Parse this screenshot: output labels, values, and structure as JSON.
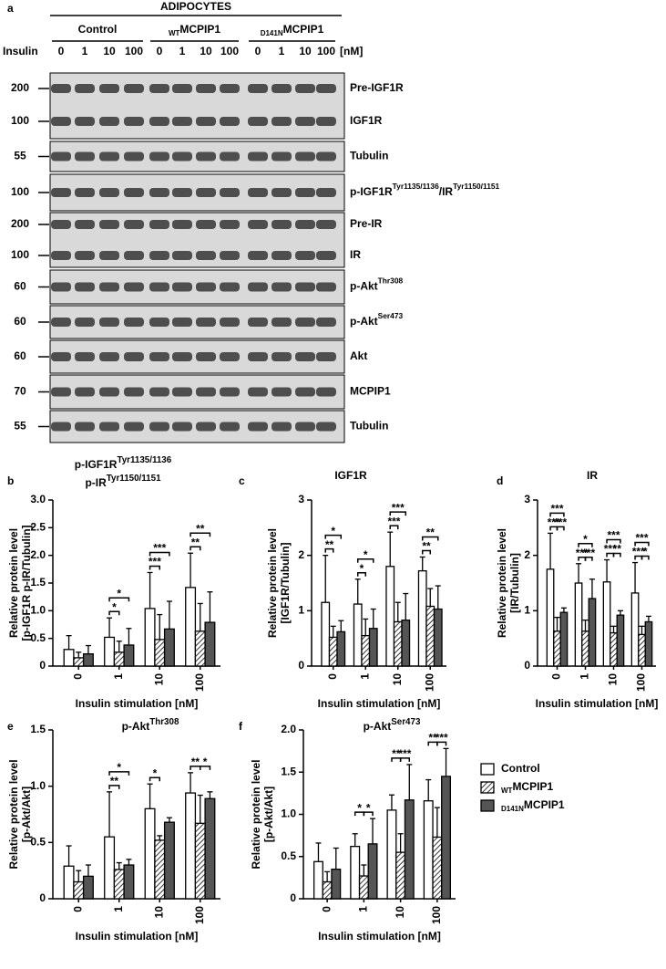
{
  "blot": {
    "panel": "a",
    "cell": "ADIPOCYTES",
    "groups": [
      {
        "name": "Control"
      },
      {
        "sub": "WT",
        "name": "MCPIP1"
      },
      {
        "sub": "D141N",
        "name": "MCPIP1"
      }
    ],
    "treatment": "Insulin",
    "doses": [
      "0",
      "1",
      "10",
      "100"
    ],
    "unit": "[nM]",
    "boxes": [
      {
        "rows": [
          {
            "marker": "200",
            "name": [
              "Pre-IGF1R"
            ]
          },
          {
            "marker": "100",
            "name": [
              "IGF1R"
            ]
          }
        ]
      },
      {
        "rows": [
          {
            "marker": "55",
            "name": [
              "Tubulin"
            ]
          }
        ]
      },
      {
        "rows": [
          {
            "marker": "100",
            "name": [
              "p-IGF1R",
              "Tyr1135/1136",
              "/IR",
              "Tyr1150/1151"
            ]
          }
        ]
      },
      {
        "rows": [
          {
            "marker": "200",
            "name": [
              "Pre-IR"
            ]
          },
          {
            "marker": "100",
            "name": [
              "IR"
            ]
          }
        ]
      },
      {
        "rows": [
          {
            "marker": "60",
            "name": [
              "p-Akt",
              "Thr308"
            ]
          }
        ]
      },
      {
        "rows": [
          {
            "marker": "60",
            "name": [
              "p-Akt",
              "Ser473"
            ]
          }
        ]
      },
      {
        "rows": [
          {
            "marker": "60",
            "name": [
              "Akt"
            ]
          }
        ]
      },
      {
        "rows": [
          {
            "marker": "70",
            "name": [
              "MCPIP1"
            ]
          }
        ]
      },
      {
        "rows": [
          {
            "marker": "55",
            "name": [
              "Tubulin"
            ]
          }
        ]
      }
    ]
  },
  "legend": {
    "series": [
      {
        "name": "Control",
        "color": "#ffffff"
      },
      {
        "sub": "WT",
        "name": "MCPIP1",
        "color": "#9a9a9a",
        "hatch": true
      },
      {
        "sub": "D141N",
        "name": "MCPIP1",
        "color": "#555555"
      }
    ]
  },
  "chart_data": [
    {
      "type": "bar",
      "panel": "b",
      "title": [
        [
          "p-IGF1R",
          "Tyr1135/1136"
        ],
        [
          "p-IR",
          "Tyr1150/1151"
        ]
      ],
      "ylabel": [
        "Relative protein level",
        "[p-IGF1R p-IR/Tubulin]"
      ],
      "xlabel": "Insulin stimulation [nM]",
      "categories": [
        "0",
        "1",
        "10",
        "100"
      ],
      "ylim": [
        0,
        3
      ],
      "yticks": [
        0,
        0.5,
        {
          "value": 1,
          "label": "1.0"
        },
        1.5,
        {
          "value": 2,
          "label": "2.0"
        },
        2.5,
        {
          "value": 3,
          "label": "3.0"
        }
      ],
      "series": [
        {
          "values": [
            0.3,
            0.52,
            1.04,
            1.42
          ],
          "errors": [
            0.25,
            0.35,
            0.65,
            0.62
          ]
        },
        {
          "values": [
            0.15,
            0.25,
            0.48,
            0.63
          ],
          "errors": [
            0.1,
            0.2,
            0.45,
            0.5
          ]
        },
        {
          "values": [
            0.22,
            0.38,
            0.67,
            0.79
          ],
          "errors": [
            0.15,
            0.3,
            0.5,
            0.55
          ]
        }
      ],
      "annotations": [
        {
          "text": "*",
          "category": 1,
          "bars": [
            0,
            1
          ]
        },
        {
          "text": "*",
          "category": 1,
          "bars": [
            0,
            2
          ]
        },
        {
          "text": "***",
          "category": 2,
          "bars": [
            0,
            1
          ]
        },
        {
          "text": "***",
          "category": 2,
          "bars": [
            0,
            2
          ]
        },
        {
          "text": "**",
          "category": 3,
          "bars": [
            0,
            1
          ]
        },
        {
          "text": "**",
          "category": 3,
          "bars": [
            0,
            2
          ]
        }
      ]
    },
    {
      "type": "bar",
      "panel": "c",
      "title": [
        [
          "IGF1R"
        ]
      ],
      "ylabel": [
        "Relative protein level",
        "[IGF1R/Tubulin]"
      ],
      "xlabel": "Insulin stimulation [nM]",
      "categories": [
        "0",
        "1",
        "10",
        "100"
      ],
      "ylim": [
        0,
        3
      ],
      "yticks": [
        0,
        1,
        2,
        3
      ],
      "series": [
        {
          "values": [
            1.15,
            1.12,
            1.8,
            1.72
          ],
          "errors": [
            0.85,
            0.45,
            0.62,
            0.25
          ]
        },
        {
          "values": [
            0.52,
            0.55,
            0.8,
            1.08
          ],
          "errors": [
            0.2,
            0.3,
            0.35,
            0.32
          ]
        },
        {
          "values": [
            0.62,
            0.68,
            0.83,
            1.03
          ],
          "errors": [
            0.2,
            0.35,
            0.48,
            0.42
          ]
        }
      ],
      "annotations": [
        {
          "text": "**",
          "category": 0,
          "bars": [
            0,
            1
          ]
        },
        {
          "text": "*",
          "category": 0,
          "bars": [
            0,
            2
          ]
        },
        {
          "text": "*",
          "category": 1,
          "bars": [
            0,
            1
          ]
        },
        {
          "text": "*",
          "category": 1,
          "bars": [
            0,
            2
          ]
        },
        {
          "text": "***",
          "category": 2,
          "bars": [
            0,
            1
          ]
        },
        {
          "text": "***",
          "category": 2,
          "bars": [
            0,
            2
          ]
        },
        {
          "text": "**",
          "category": 3,
          "bars": [
            0,
            1
          ]
        },
        {
          "text": "**",
          "category": 3,
          "bars": [
            0,
            2
          ]
        }
      ]
    },
    {
      "type": "bar",
      "panel": "d",
      "title": [
        [
          "IR"
        ]
      ],
      "ylabel": [
        "Relative protein level",
        "[IR/Tubulin]"
      ],
      "xlabel": "Insulin stimulation [nM]",
      "categories": [
        "0",
        "1",
        "10",
        "100"
      ],
      "ylim": [
        0,
        3
      ],
      "yticks": [
        0,
        1,
        2,
        3
      ],
      "series": [
        {
          "values": [
            1.75,
            1.5,
            1.52,
            1.32
          ],
          "errors": [
            0.65,
            0.35,
            0.4,
            0.55
          ]
        },
        {
          "values": [
            0.63,
            0.63,
            0.6,
            0.57
          ],
          "errors": [
            0.25,
            0.2,
            0.12,
            0.15
          ]
        },
        {
          "values": [
            0.97,
            1.22,
            0.92,
            0.8
          ],
          "errors": [
            0.08,
            0.35,
            0.08,
            0.1
          ]
        }
      ],
      "annotations": [
        {
          "text": "***",
          "category": 0,
          "bars": [
            0,
            1
          ]
        },
        {
          "text": "***",
          "category": 0,
          "bars": [
            1,
            2
          ]
        },
        {
          "text": "***",
          "category": 0,
          "bars": [
            0,
            2
          ]
        },
        {
          "text": "***",
          "category": 1,
          "bars": [
            0,
            1
          ]
        },
        {
          "text": "***",
          "category": 1,
          "bars": [
            1,
            2
          ]
        },
        {
          "text": "*",
          "category": 1,
          "bars": [
            0,
            2
          ]
        },
        {
          "text": "***",
          "category": 2,
          "bars": [
            0,
            1
          ]
        },
        {
          "text": "**",
          "category": 2,
          "bars": [
            1,
            2
          ]
        },
        {
          "text": "***",
          "category": 2,
          "bars": [
            0,
            2
          ]
        },
        {
          "text": "***",
          "category": 3,
          "bars": [
            0,
            1
          ]
        },
        {
          "text": "*",
          "category": 3,
          "bars": [
            1,
            2
          ]
        },
        {
          "text": "***",
          "category": 3,
          "bars": [
            0,
            2
          ]
        }
      ]
    },
    {
      "type": "bar",
      "panel": "e",
      "title": [
        [
          "p-Akt",
          "Thr308"
        ]
      ],
      "ylabel": [
        "Relative protein level",
        "[p-Akt/Akt]"
      ],
      "xlabel": "Insulin stimulation [nM]",
      "categories": [
        "0",
        "1",
        "10",
        "100"
      ],
      "ylim": [
        0,
        1.5
      ],
      "yticks": [
        0,
        0.5,
        {
          "value": 1,
          "label": "1.0"
        },
        1.5
      ],
      "series": [
        {
          "values": [
            0.29,
            0.55,
            0.8,
            0.94
          ],
          "errors": [
            0.18,
            0.4,
            0.22,
            0.18
          ]
        },
        {
          "values": [
            0.15,
            0.26,
            0.52,
            0.67
          ],
          "errors": [
            0.1,
            0.06,
            0.04,
            0.25
          ]
        },
        {
          "values": [
            0.2,
            0.3,
            0.68,
            0.89
          ],
          "errors": [
            0.1,
            0.05,
            0.04,
            0.06
          ]
        }
      ],
      "annotations": [
        {
          "text": "**",
          "category": 1,
          "bars": [
            0,
            1
          ]
        },
        {
          "text": "*",
          "category": 1,
          "bars": [
            0,
            2
          ]
        },
        {
          "text": "*",
          "category": 2,
          "bars": [
            0,
            1
          ]
        },
        {
          "text": "**",
          "category": 3,
          "bars": [
            0,
            1
          ]
        },
        {
          "text": "*",
          "category": 3,
          "bars": [
            1,
            2
          ]
        }
      ]
    },
    {
      "type": "bar",
      "panel": "f",
      "title": [
        [
          "p-Akt",
          "Ser473"
        ]
      ],
      "ylabel": [
        "Relative protein level",
        "[p-Akt/Akt]"
      ],
      "xlabel": "Insulin stimulation [nM]",
      "categories": [
        "0",
        "1",
        "10",
        "100"
      ],
      "ylim": [
        0,
        2
      ],
      "yticks": [
        0,
        0.5,
        {
          "value": 1,
          "label": "1.0"
        },
        1.5,
        {
          "value": 2,
          "label": "2.0"
        }
      ],
      "series": [
        {
          "values": [
            0.44,
            0.62,
            1.05,
            1.16
          ],
          "errors": [
            0.22,
            0.15,
            0.18,
            0.25
          ]
        },
        {
          "values": [
            0.2,
            0.27,
            0.55,
            0.73
          ],
          "errors": [
            0.12,
            0.13,
            0.22,
            0.35
          ]
        },
        {
          "values": [
            0.35,
            0.65,
            1.17,
            1.45
          ],
          "errors": [
            0.25,
            0.3,
            0.42,
            0.33
          ]
        }
      ],
      "annotations": [
        {
          "text": "*",
          "category": 1,
          "bars": [
            0,
            1
          ]
        },
        {
          "text": "*",
          "category": 1,
          "bars": [
            1,
            2
          ]
        },
        {
          "text": "**",
          "category": 2,
          "bars": [
            0,
            1
          ]
        },
        {
          "text": "***",
          "category": 2,
          "bars": [
            1,
            2
          ]
        },
        {
          "text": "**",
          "category": 3,
          "bars": [
            0,
            1
          ]
        },
        {
          "text": "***",
          "category": 3,
          "bars": [
            1,
            2
          ]
        }
      ]
    }
  ]
}
